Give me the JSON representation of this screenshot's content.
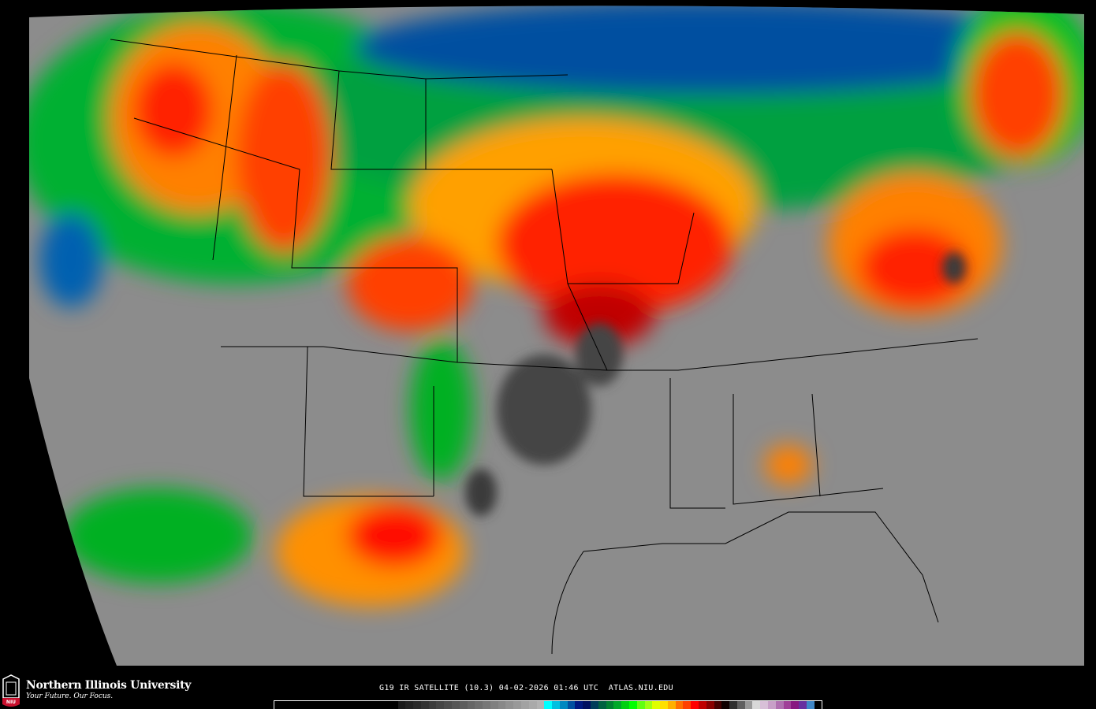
{
  "logo": {
    "name": "Northern Illinois University",
    "tagline": "Your Future. Our Focus.",
    "badge": "NIU"
  },
  "caption": "G19 IR SATELLITE (10.3) 04-02-2026 01:46 UTC  ATLAS.NIU.EDU",
  "colorbar": {
    "colors": [
      "#000000",
      "#000000",
      "#000000",
      "#000000",
      "#000000",
      "#000000",
      "#000000",
      "#000000",
      "#000000",
      "#000000",
      "#000000",
      "#000000",
      "#000000",
      "#000000",
      "#000000",
      "#000000",
      "#1a1a1a",
      "#222222",
      "#2a2a2a",
      "#333333",
      "#3b3b3b",
      "#444444",
      "#4c4c4c",
      "#555555",
      "#5d5d5d",
      "#666666",
      "#6e6e6e",
      "#777777",
      "#808080",
      "#888888",
      "#919191",
      "#999999",
      "#a2a2a2",
      "#aaaaaa",
      "#b3b3b3",
      "#00ffff",
      "#00c0e0",
      "#0088c0",
      "#0050a0",
      "#001880",
      "#000f60",
      "#003c5a",
      "#006040",
      "#008030",
      "#00a828",
      "#00d010",
      "#00ff00",
      "#60ff10",
      "#a0ff10",
      "#e0ff00",
      "#ffe000",
      "#ffb000",
      "#ff7000",
      "#ff4000",
      "#ff0000",
      "#c00000",
      "#880000",
      "#440000",
      "#100000",
      "#303030",
      "#606060",
      "#999999",
      "#d8d8d8",
      "#d8c0d8",
      "#c8a0c8",
      "#b070b0",
      "#a04098",
      "#881880",
      "#6830a0",
      "#4088c8",
      "#000000"
    ]
  },
  "colors": {
    "cold_cloud": "#ff0000",
    "very_cold": "#555555",
    "clear": "#8a8a8a",
    "moisture": "#00c000"
  }
}
